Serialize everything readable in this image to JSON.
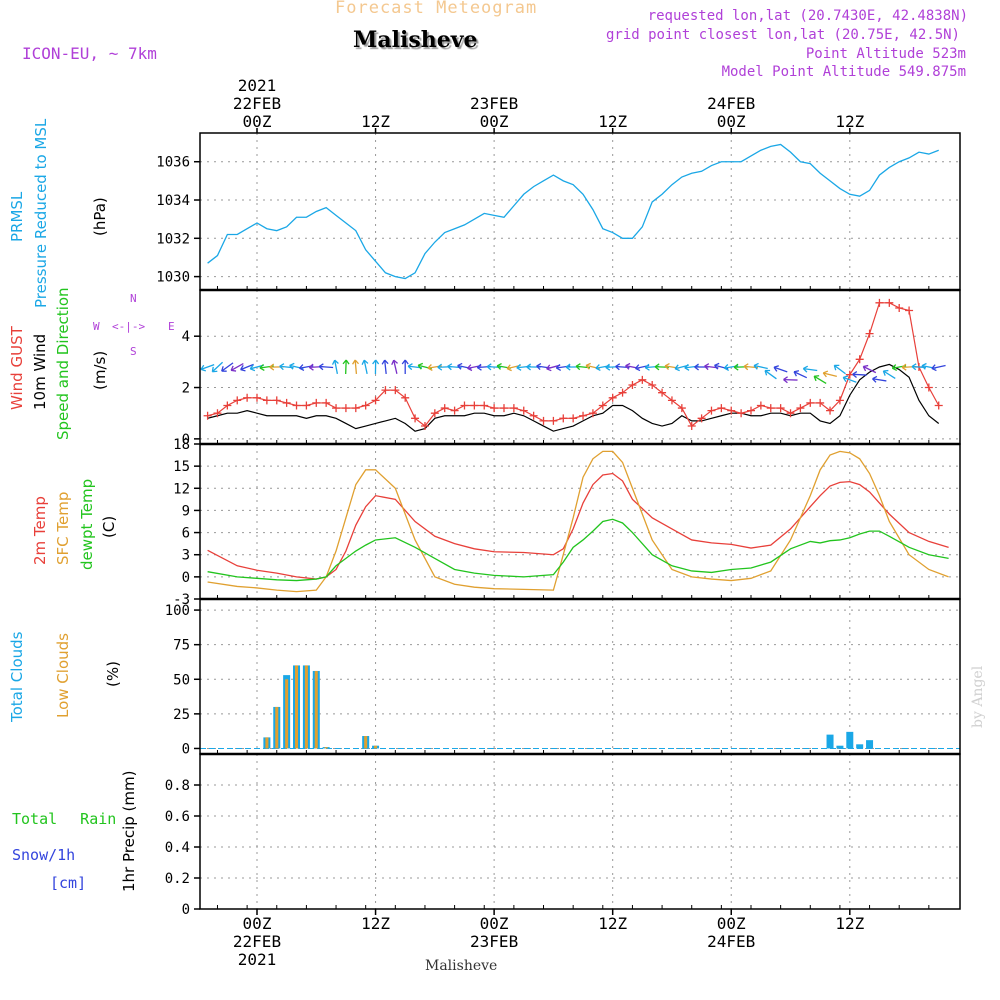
{
  "header": {
    "title": "Forecast Meteogram",
    "location": "Malisheve",
    "model": "ICON-EU, ~ 7km",
    "requested": "requested lon,lat (20.7430E, 42.4838N)",
    "grid_point": "grid point closest lon,lat (20.75E, 42.5N)",
    "point_altitude": "Point Altitude 523m",
    "model_altitude": "Model Point Altitude 549.875m",
    "footer_location": "Malisheve",
    "credit": "by Angel"
  },
  "time_axis": {
    "top_labels": [
      {
        "lines": [
          "2021",
          "22FEB",
          "00Z"
        ]
      },
      {
        "lines": [
          "12Z"
        ]
      },
      {
        "lines": [
          "23FEB",
          "00Z"
        ]
      },
      {
        "lines": [
          "12Z"
        ]
      },
      {
        "lines": [
          "24FEB",
          "00Z"
        ]
      },
      {
        "lines": [
          "12Z"
        ]
      }
    ],
    "bottom_labels": [
      {
        "lines": [
          "00Z",
          "22FEB",
          "2021"
        ]
      },
      {
        "lines": [
          "12Z"
        ]
      },
      {
        "lines": [
          "00Z",
          "23FEB"
        ]
      },
      {
        "lines": [
          "12Z"
        ]
      },
      {
        "lines": [
          "00Z",
          "24FEB"
        ]
      },
      {
        "lines": [
          "12Z"
        ]
      }
    ]
  },
  "panels": {
    "pressure": {
      "labels": [
        "PRMSL",
        "Pressure Reduced to MSL"
      ],
      "unit": "(hPa)"
    },
    "wind": {
      "labels": [
        "Wind GUST",
        "10m Wind",
        "Speed and Direction"
      ],
      "unit": "(m/s)",
      "compass": {
        "n": "N",
        "s": "S",
        "w": "W",
        "e": "E"
      }
    },
    "temp": {
      "labels": [
        "2m Temp",
        "SFC Temp",
        "dewpt Temp"
      ],
      "unit": "(C)"
    },
    "clouds": {
      "labels": [
        "Total Clouds",
        "Low Clouds"
      ],
      "unit": "(%)"
    },
    "precip": {
      "labels": [
        "Total Rain",
        "Snow/1h",
        "[cm]"
      ],
      "ylabel": "1hr Precip (mm)"
    }
  },
  "colors": {
    "pressure": "#1aa7e6",
    "gust": "#e8403a",
    "wind": "#000000",
    "t2m": "#e8403a",
    "tsfc": "#e0a030",
    "dewpt": "#22c41e",
    "total_clouds": "#1aa7e6",
    "low_clouds": "#e0a030",
    "rain": "#22c41e",
    "snow": "#3344dd",
    "header_title": "#f4c890",
    "header_info": "#b040d8",
    "compass": "#b040d8"
  },
  "chart_data": [
    {
      "type": "line",
      "name": "pressure",
      "x_unit": "hours from 22FEB 00Z",
      "ylim": [
        1029.3,
        1037.5
      ],
      "yticks": [
        1030,
        1032,
        1034,
        1036
      ],
      "series": [
        {
          "name": "PRMSL",
          "x": [
            -5,
            -4,
            -3,
            -2,
            -1,
            0,
            1,
            2,
            3,
            4,
            5,
            6,
            7,
            8,
            9,
            10,
            11,
            12,
            13,
            14,
            15,
            16,
            17,
            18,
            19,
            20,
            21,
            22,
            23,
            24,
            25,
            26,
            27,
            28,
            29,
            30,
            31,
            32,
            33,
            34,
            35,
            36,
            37,
            38,
            39,
            40,
            41,
            42,
            43,
            44,
            45,
            46,
            47,
            48,
            49,
            50,
            51,
            52,
            53,
            54,
            55,
            56,
            57,
            58,
            59,
            60,
            61,
            62,
            63,
            64,
            65,
            66,
            67,
            68,
            69
          ],
          "values": [
            1030.7,
            1031.1,
            1032.2,
            1032.2,
            1032.5,
            1032.8,
            1032.5,
            1032.4,
            1032.6,
            1033.1,
            1033.1,
            1033.4,
            1033.6,
            1033.2,
            1032.8,
            1032.4,
            1031.4,
            1030.8,
            1030.2,
            1030.0,
            1029.9,
            1030.2,
            1031.2,
            1031.8,
            1032.3,
            1032.5,
            1032.7,
            1033.0,
            1033.3,
            1033.2,
            1033.1,
            1033.7,
            1034.3,
            1034.7,
            1035.0,
            1035.3,
            1035.0,
            1034.8,
            1034.3,
            1033.5,
            1032.5,
            1032.3,
            1032.0,
            1032.0,
            1032.6,
            1033.9,
            1034.3,
            1034.8,
            1035.2,
            1035.4,
            1035.5,
            1035.8,
            1036.0,
            1036.0,
            1036.0,
            1036.3,
            1036.6,
            1036.8,
            1036.9,
            1036.5,
            1036.0,
            1035.9,
            1035.4,
            1035.0,
            1034.6,
            1034.3,
            1034.2,
            1034.5,
            1035.3,
            1035.7,
            1036.0,
            1036.2,
            1036.5,
            1036.4,
            1036.6
          ]
        }
      ]
    },
    {
      "type": "line",
      "name": "wind",
      "x_unit": "hours from 22FEB 00Z",
      "ylim": [
        -0.2,
        5.8
      ],
      "yticks": [
        0,
        2,
        4
      ],
      "series": [
        {
          "name": "Wind GUST",
          "x": [
            -5,
            -4,
            -3,
            -2,
            -1,
            0,
            1,
            2,
            3,
            4,
            5,
            6,
            7,
            8,
            9,
            10,
            11,
            12,
            13,
            14,
            15,
            16,
            17,
            18,
            19,
            20,
            21,
            22,
            23,
            24,
            25,
            26,
            27,
            28,
            29,
            30,
            31,
            32,
            33,
            34,
            35,
            36,
            37,
            38,
            39,
            40,
            41,
            42,
            43,
            44,
            45,
            46,
            47,
            48,
            49,
            50,
            51,
            52,
            53,
            54,
            55,
            56,
            57,
            58,
            59,
            60,
            61,
            62,
            63,
            64,
            65,
            66,
            67,
            68,
            69
          ],
          "values": [
            0.9,
            1.0,
            1.3,
            1.5,
            1.6,
            1.6,
            1.5,
            1.5,
            1.4,
            1.3,
            1.3,
            1.4,
            1.4,
            1.2,
            1.2,
            1.2,
            1.3,
            1.5,
            1.9,
            1.9,
            1.6,
            0.8,
            0.5,
            1.0,
            1.2,
            1.1,
            1.3,
            1.3,
            1.3,
            1.2,
            1.2,
            1.2,
            1.1,
            0.9,
            0.7,
            0.7,
            0.8,
            0.8,
            0.9,
            1.0,
            1.3,
            1.6,
            1.8,
            2.1,
            2.3,
            2.1,
            1.8,
            1.5,
            1.2,
            0.5,
            0.8,
            1.1,
            1.2,
            1.1,
            1.0,
            1.1,
            1.3,
            1.2,
            1.2,
            1.0,
            1.2,
            1.4,
            1.4,
            1.1,
            1.5,
            2.5,
            3.1,
            4.1,
            5.3,
            5.3,
            5.1,
            5.0,
            2.8,
            2.0,
            1.3
          ]
        },
        {
          "name": "10m Wind",
          "x": [
            -5,
            -4,
            -3,
            -2,
            -1,
            0,
            1,
            2,
            3,
            4,
            5,
            6,
            7,
            8,
            9,
            10,
            11,
            12,
            13,
            14,
            15,
            16,
            17,
            18,
            19,
            20,
            21,
            22,
            23,
            24,
            25,
            26,
            27,
            28,
            29,
            30,
            31,
            32,
            33,
            34,
            35,
            36,
            37,
            38,
            39,
            40,
            41,
            42,
            43,
            44,
            45,
            46,
            47,
            48,
            49,
            50,
            51,
            52,
            53,
            54,
            55,
            56,
            57,
            58,
            59,
            60,
            61,
            62,
            63,
            64,
            65,
            66,
            67,
            68,
            69
          ],
          "values": [
            0.8,
            0.9,
            1.0,
            1.0,
            1.1,
            1.0,
            0.9,
            0.9,
            0.9,
            0.9,
            0.8,
            0.9,
            0.9,
            0.8,
            0.6,
            0.4,
            0.5,
            0.6,
            0.7,
            0.8,
            0.6,
            0.3,
            0.4,
            0.8,
            0.9,
            0.9,
            0.9,
            1.0,
            1.0,
            0.9,
            0.9,
            1.0,
            0.9,
            0.7,
            0.5,
            0.3,
            0.4,
            0.5,
            0.7,
            0.9,
            1.0,
            1.3,
            1.3,
            1.1,
            0.8,
            0.6,
            0.5,
            0.6,
            0.9,
            0.7,
            0.7,
            0.8,
            0.9,
            1.0,
            1.0,
            0.9,
            0.9,
            1.0,
            1.0,
            0.9,
            1.0,
            1.0,
            0.7,
            0.6,
            0.9,
            1.7,
            2.3,
            2.6,
            2.8,
            2.9,
            2.7,
            2.4,
            1.5,
            0.9,
            0.6
          ]
        }
      ]
    },
    {
      "type": "line",
      "name": "temperature",
      "x_unit": "hours from 22FEB 00Z",
      "ylim": [
        -3,
        18
      ],
      "yticks": [
        -3,
        0,
        3,
        6,
        9,
        12,
        15,
        18
      ],
      "series": [
        {
          "name": "2m Temp",
          "x": [
            -5,
            -2,
            0,
            2,
            4,
            6,
            7,
            8,
            9,
            10,
            11,
            12,
            14,
            16,
            18,
            20,
            22,
            24,
            27,
            30,
            31,
            32,
            33,
            34,
            35,
            36,
            37,
            38,
            40,
            42,
            44,
            46,
            48,
            50,
            52,
            54,
            56,
            57,
            58,
            59,
            60,
            61,
            62,
            63,
            64,
            66,
            68,
            70
          ],
          "values": [
            3.6,
            1.5,
            0.9,
            0.5,
            0.0,
            -0.3,
            0.0,
            1.0,
            3.5,
            7.0,
            9.5,
            11.0,
            10.5,
            7.5,
            5.5,
            4.5,
            3.8,
            3.4,
            3.3,
            3.0,
            3.8,
            6.5,
            10.0,
            12.5,
            13.8,
            14.0,
            13.0,
            10.5,
            8.0,
            6.5,
            5.0,
            4.6,
            4.4,
            3.9,
            4.3,
            6.5,
            9.5,
            11.0,
            12.3,
            12.8,
            12.9,
            12.5,
            11.5,
            10.0,
            8.5,
            6.0,
            4.8,
            4.0
          ]
        },
        {
          "name": "SFC Temp",
          "x": [
            -5,
            -2,
            0,
            2,
            4,
            6,
            7,
            8,
            9,
            10,
            11,
            12,
            14,
            16,
            18,
            20,
            22,
            24,
            27,
            30,
            31,
            32,
            33,
            34,
            35,
            36,
            37,
            38,
            40,
            42,
            44,
            46,
            48,
            50,
            52,
            54,
            56,
            57,
            58,
            59,
            60,
            61,
            62,
            63,
            64,
            66,
            68,
            70
          ],
          "values": [
            -0.7,
            -1.3,
            -1.5,
            -1.8,
            -2.0,
            -1.8,
            0.0,
            3.5,
            8.0,
            12.5,
            14.5,
            14.5,
            12.0,
            5.0,
            0.0,
            -1.0,
            -1.4,
            -1.6,
            -1.7,
            -1.8,
            3.0,
            8.0,
            13.5,
            16.0,
            17.0,
            17.0,
            15.5,
            12.0,
            5.0,
            1.0,
            0.0,
            -0.3,
            -0.5,
            -0.2,
            0.8,
            5.0,
            11.0,
            14.5,
            16.5,
            17.0,
            16.8,
            16.0,
            14.0,
            11.0,
            7.5,
            3.0,
            1.0,
            0.0
          ]
        },
        {
          "name": "dewpt Temp",
          "x": [
            -5,
            -2,
            0,
            2,
            4,
            6,
            7,
            8,
            9,
            10,
            11,
            12,
            14,
            16,
            18,
            20,
            22,
            24,
            27,
            30,
            31,
            32,
            33,
            34,
            35,
            36,
            37,
            38,
            40,
            42,
            44,
            46,
            48,
            50,
            52,
            54,
            56,
            57,
            58,
            59,
            60,
            61,
            62,
            63,
            64,
            66,
            68,
            70
          ],
          "values": [
            0.7,
            0.0,
            -0.2,
            -0.4,
            -0.5,
            -0.3,
            0.0,
            1.5,
            2.5,
            3.5,
            4.3,
            5.0,
            5.3,
            4.0,
            2.5,
            1.0,
            0.5,
            0.2,
            0.0,
            0.3,
            2.0,
            4.0,
            5.0,
            6.2,
            7.5,
            7.8,
            7.3,
            6.0,
            3.0,
            1.5,
            0.8,
            0.6,
            1.0,
            1.2,
            2.0,
            3.8,
            4.8,
            4.6,
            4.9,
            5.0,
            5.3,
            5.8,
            6.2,
            6.2,
            5.5,
            4.0,
            3.0,
            2.5
          ]
        }
      ]
    },
    {
      "type": "bar",
      "name": "clouds",
      "x_unit": "hours from 22FEB 00Z",
      "ylim": [
        -4,
        108
      ],
      "yticks": [
        0,
        25,
        50,
        75,
        100
      ],
      "series": [
        {
          "name": "Total Clouds",
          "x": [
            1,
            2,
            3,
            4,
            5,
            6,
            7,
            11,
            12,
            58,
            59,
            60,
            61,
            62
          ],
          "values": [
            8,
            30,
            53,
            60,
            60,
            56,
            1,
            9,
            2,
            10,
            2,
            12,
            3,
            6
          ]
        },
        {
          "name": "Low Clouds",
          "x": [
            1,
            2,
            3,
            4,
            5,
            6,
            7,
            11,
            12
          ],
          "values": [
            8,
            30,
            50,
            60,
            60,
            56,
            1,
            9,
            2
          ]
        }
      ]
    },
    {
      "type": "bar",
      "name": "precipitation",
      "x_unit": "hours from 22FEB 00Z",
      "ylim": [
        0,
        1.0
      ],
      "yticks": [
        0,
        0.2,
        0.4,
        0.6,
        0.8
      ],
      "series": [
        {
          "name": "Total Rain",
          "x": [],
          "values": []
        },
        {
          "name": "Snow/1h",
          "x": [],
          "values": []
        }
      ]
    }
  ]
}
